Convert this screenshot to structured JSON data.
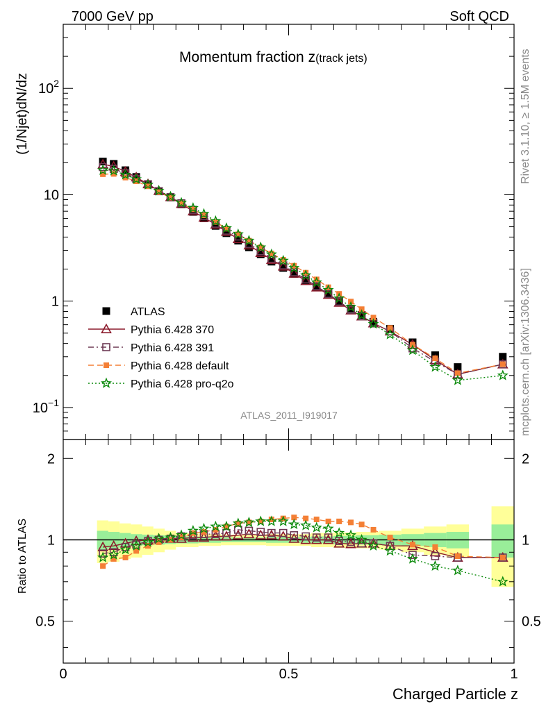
{
  "header": {
    "left": "7000 GeV pp",
    "right": "Soft QCD"
  },
  "chart_data": [
    {
      "type": "scatter",
      "title": "Momentum fraction z",
      "title_sub": "(track jets)",
      "ylabel": "(1/Njet)dN/dz",
      "xlim": [
        0,
        1
      ],
      "ylim": [
        0.05,
        400
      ],
      "log_y": true,
      "y_ticks": [
        {
          "value": 100,
          "label": "10",
          "sup": "2"
        },
        {
          "value": 10,
          "label": "10",
          "sup": ""
        },
        {
          "value": 1,
          "label": "1",
          "sup": ""
        },
        {
          "value": 0.1,
          "label": "10",
          "sup": "−1"
        }
      ],
      "x": [
        0.088,
        0.112,
        0.138,
        0.162,
        0.188,
        0.212,
        0.238,
        0.262,
        0.288,
        0.312,
        0.338,
        0.362,
        0.388,
        0.412,
        0.438,
        0.462,
        0.488,
        0.512,
        0.538,
        0.562,
        0.588,
        0.612,
        0.638,
        0.662,
        0.688,
        0.725,
        0.775,
        0.825,
        0.875,
        0.975
      ],
      "series": [
        {
          "name": "ATLAS",
          "color": "#000000",
          "marker": "square-filled",
          "values": [
            20.5,
            19.5,
            17.0,
            14.7,
            12.6,
            10.8,
            9.4,
            8.1,
            6.9,
            6.0,
            5.1,
            4.35,
            3.7,
            3.2,
            2.75,
            2.35,
            2.05,
            1.8,
            1.55,
            1.35,
            1.15,
            1.0,
            0.85,
            0.74,
            0.64,
            0.55,
            0.41,
            0.31,
            0.24,
            0.3
          ]
        },
        {
          "name": "Pythia 6.428 370",
          "color": "#8b1a2b",
          "marker": "triangle-open",
          "line": "solid",
          "values": [
            19.3,
            18.5,
            16.5,
            14.6,
            12.6,
            10.9,
            9.5,
            8.2,
            7.0,
            6.1,
            5.25,
            4.5,
            3.85,
            3.35,
            2.85,
            2.45,
            2.12,
            1.82,
            1.55,
            1.35,
            1.15,
            0.97,
            0.82,
            0.72,
            0.62,
            0.52,
            0.39,
            0.28,
            0.205,
            0.255
          ]
        },
        {
          "name": "Pythia 6.428 391",
          "color": "#6d3a54",
          "marker": "square-open",
          "line": "dashdot",
          "values": [
            18.2,
            17.5,
            15.9,
            14.1,
            12.5,
            10.8,
            9.5,
            8.3,
            7.2,
            6.3,
            5.35,
            4.6,
            4.05,
            3.45,
            2.95,
            2.5,
            2.17,
            1.87,
            1.6,
            1.38,
            1.17,
            0.99,
            0.83,
            0.72,
            0.62,
            0.52,
            0.36,
            0.27,
            0.205,
            0.255
          ]
        },
        {
          "name": "Pythia 6.428 default",
          "color": "#f47f35",
          "marker": "square-filled-small",
          "line": "dashed",
          "values": [
            15.6,
            15.7,
            14.5,
            13.4,
            12.0,
            10.6,
            9.4,
            8.3,
            7.3,
            6.4,
            5.55,
            4.8,
            4.25,
            3.7,
            3.2,
            2.8,
            2.45,
            2.15,
            1.85,
            1.6,
            1.35,
            1.17,
            0.99,
            0.84,
            0.7,
            0.56,
            0.39,
            0.29,
            0.21,
            0.255
          ]
        },
        {
          "name": "Pythia 6.428 pro-q2o",
          "color": "#0a8a0a",
          "marker": "star",
          "line": "dotted",
          "values": [
            17.0,
            16.8,
            15.4,
            14.0,
            12.4,
            10.9,
            9.6,
            8.4,
            7.5,
            6.6,
            5.65,
            4.85,
            4.25,
            3.7,
            3.2,
            2.75,
            2.4,
            2.05,
            1.75,
            1.5,
            1.27,
            1.06,
            0.88,
            0.74,
            0.61,
            0.485,
            0.345,
            0.24,
            0.18,
            0.2
          ]
        }
      ],
      "annotation": "ATLAS_2011_I919017"
    },
    {
      "type": "scatter",
      "ylabel": "Ratio to ATLAS",
      "xlabel": "Charged Particle z",
      "xlim": [
        0,
        1
      ],
      "ylim": [
        0.35,
        2.35
      ],
      "log_y": true,
      "y_ticks": [
        {
          "value": 0.5,
          "label": "0.5"
        },
        {
          "value": 1,
          "label": "1"
        },
        {
          "value": 2,
          "label": "2"
        }
      ],
      "x_ticks": [
        {
          "value": 0,
          "label": "0"
        },
        {
          "value": 0.5,
          "label": "0.5"
        },
        {
          "value": 1,
          "label": "1"
        }
      ],
      "reference_line": 1,
      "uncertainty_bands": [
        {
          "x": [
            0.075,
            0.1
          ],
          "stat": [
            0.92,
            1.08
          ],
          "total": [
            0.82,
            1.18
          ]
        },
        {
          "x": [
            0.1,
            0.125
          ],
          "stat": [
            0.93,
            1.07
          ],
          "total": [
            0.83,
            1.17
          ]
        },
        {
          "x": [
            0.125,
            0.15
          ],
          "stat": [
            0.94,
            1.06
          ],
          "total": [
            0.85,
            1.15
          ]
        },
        {
          "x": [
            0.15,
            0.175
          ],
          "stat": [
            0.95,
            1.05
          ],
          "total": [
            0.86,
            1.14
          ]
        },
        {
          "x": [
            0.175,
            0.2
          ],
          "stat": [
            0.955,
            1.045
          ],
          "total": [
            0.88,
            1.12
          ]
        },
        {
          "x": [
            0.2,
            0.225
          ],
          "stat": [
            0.96,
            1.04
          ],
          "total": [
            0.9,
            1.1
          ]
        },
        {
          "x": [
            0.225,
            0.25
          ],
          "stat": [
            0.965,
            1.035
          ],
          "total": [
            0.92,
            1.08
          ]
        },
        {
          "x": [
            0.25,
            0.3
          ],
          "stat": [
            0.97,
            1.03
          ],
          "total": [
            0.94,
            1.06
          ]
        },
        {
          "x": [
            0.3,
            0.35
          ],
          "stat": [
            0.975,
            1.025
          ],
          "total": [
            0.95,
            1.05
          ]
        },
        {
          "x": [
            0.35,
            0.45
          ],
          "stat": [
            0.98,
            1.02
          ],
          "total": [
            0.955,
            1.045
          ]
        },
        {
          "x": [
            0.45,
            0.55
          ],
          "stat": [
            0.975,
            1.025
          ],
          "total": [
            0.95,
            1.05
          ]
        },
        {
          "x": [
            0.55,
            0.6
          ],
          "stat": [
            0.97,
            1.03
          ],
          "total": [
            0.94,
            1.06
          ]
        },
        {
          "x": [
            0.6,
            0.65
          ],
          "stat": [
            0.965,
            1.035
          ],
          "total": [
            0.935,
            1.065
          ]
        },
        {
          "x": [
            0.65,
            0.7
          ],
          "stat": [
            0.96,
            1.04
          ],
          "total": [
            0.93,
            1.07
          ]
        },
        {
          "x": [
            0.7,
            0.75
          ],
          "stat": [
            0.955,
            1.045
          ],
          "total": [
            0.92,
            1.08
          ]
        },
        {
          "x": [
            0.75,
            0.8
          ],
          "stat": [
            0.95,
            1.05
          ],
          "total": [
            0.9,
            1.1
          ]
        },
        {
          "x": [
            0.8,
            0.85
          ],
          "stat": [
            0.94,
            1.06
          ],
          "total": [
            0.88,
            1.12
          ]
        },
        {
          "x": [
            0.85,
            0.9
          ],
          "stat": [
            0.93,
            1.07
          ],
          "total": [
            0.86,
            1.14
          ]
        },
        {
          "x": [
            0.95,
            1.0
          ],
          "stat": [
            0.86,
            1.14
          ],
          "total": [
            0.67,
            1.33
          ]
        }
      ],
      "x": [
        0.088,
        0.112,
        0.138,
        0.162,
        0.188,
        0.212,
        0.238,
        0.262,
        0.288,
        0.312,
        0.338,
        0.362,
        0.388,
        0.412,
        0.438,
        0.462,
        0.488,
        0.512,
        0.538,
        0.562,
        0.588,
        0.612,
        0.638,
        0.662,
        0.688,
        0.725,
        0.775,
        0.825,
        0.875,
        0.975
      ],
      "series": [
        {
          "name": "Pythia 6.428 370",
          "color": "#8b1a2b",
          "marker": "triangle-open",
          "line": "solid",
          "values": [
            0.94,
            0.95,
            0.97,
            0.99,
            1.0,
            1.01,
            1.01,
            1.01,
            1.02,
            1.02,
            1.03,
            1.03,
            1.04,
            1.05,
            1.04,
            1.04,
            1.03,
            1.01,
            1.0,
            1.0,
            1.0,
            0.97,
            0.965,
            0.97,
            0.97,
            0.95,
            0.95,
            0.9,
            0.86,
            0.86
          ]
        },
        {
          "name": "Pythia 6.428 391",
          "color": "#6d3a54",
          "marker": "square-open",
          "line": "dashdot",
          "values": [
            0.89,
            0.9,
            0.94,
            0.96,
            0.99,
            1.0,
            1.01,
            1.03,
            1.04,
            1.05,
            1.05,
            1.06,
            1.09,
            1.08,
            1.07,
            1.06,
            1.06,
            1.04,
            1.03,
            1.02,
            1.02,
            0.99,
            0.98,
            0.97,
            0.97,
            0.95,
            0.88,
            0.87,
            0.86,
            0.86
          ]
        },
        {
          "name": "Pythia 6.428 default",
          "color": "#f47f35",
          "marker": "square-filled-small",
          "line": "dashed",
          "values": [
            0.8,
            0.85,
            0.86,
            0.91,
            0.95,
            0.98,
            1.0,
            1.02,
            1.06,
            1.07,
            1.09,
            1.12,
            1.15,
            1.16,
            1.17,
            1.19,
            1.2,
            1.21,
            1.2,
            1.19,
            1.17,
            1.17,
            1.16,
            1.14,
            1.09,
            1.02,
            0.96,
            0.94,
            0.87,
            0.86
          ]
        },
        {
          "name": "Pythia 6.428 pro-q2o",
          "color": "#0a8a0a",
          "marker": "star",
          "line": "dotted",
          "values": [
            0.86,
            0.88,
            0.92,
            0.95,
            0.98,
            1.01,
            1.02,
            1.04,
            1.08,
            1.1,
            1.12,
            1.12,
            1.15,
            1.16,
            1.17,
            1.17,
            1.17,
            1.14,
            1.13,
            1.11,
            1.1,
            1.06,
            1.04,
            1.0,
            0.95,
            0.91,
            0.85,
            0.8,
            0.77,
            0.7
          ]
        }
      ]
    }
  ],
  "side_text": {
    "rivet": "Rivet 3.1.10, ≥ 1.5M events",
    "mcplots": "mcplots.cern.ch [arXiv:1306.3436]"
  }
}
